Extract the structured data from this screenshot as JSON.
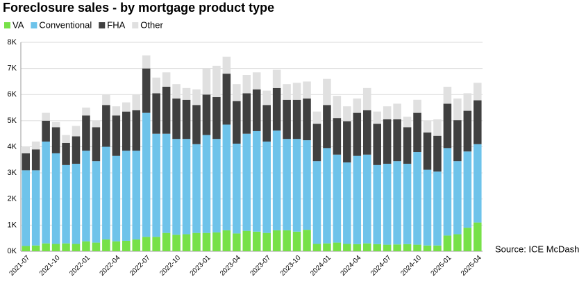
{
  "chart_data": {
    "type": "stacked_bar",
    "title": "Foreclosure sales - by mortgage product type",
    "source": "Source: ICE McDash",
    "categories": [
      "2021-07",
      null,
      null,
      "2021-10",
      null,
      null,
      "2022-01",
      null,
      null,
      "2022-04",
      null,
      null,
      "2022-07",
      null,
      null,
      "2022-10",
      null,
      null,
      "2023-01",
      null,
      null,
      "2023-04",
      null,
      null,
      "2023-07",
      null,
      null,
      "2023-10",
      null,
      null,
      "2024-01",
      null,
      null,
      "2024-04",
      null,
      null,
      "2024-07",
      null,
      null,
      "2024-10",
      null,
      null,
      "2025-01",
      null,
      null,
      "2025-04"
    ],
    "series": [
      {
        "name": "VA",
        "color": "#77e148",
        "values": [
          200,
          220,
          300,
          280,
          300,
          280,
          380,
          330,
          450,
          380,
          400,
          450,
          550,
          550,
          700,
          630,
          650,
          700,
          700,
          720,
          800,
          680,
          780,
          750,
          700,
          800,
          800,
          750,
          820,
          280,
          300,
          330,
          280,
          270,
          300,
          270,
          250,
          260,
          270,
          250,
          220,
          220,
          600,
          650,
          900,
          1100
        ]
      },
      {
        "name": "Conventional",
        "color": "#6ec3ea",
        "values": [
          2900,
          2880,
          3900,
          3470,
          3000,
          3070,
          3470,
          3120,
          3550,
          3270,
          3450,
          3400,
          4750,
          3950,
          3800,
          3670,
          3650,
          3400,
          3750,
          3580,
          4050,
          3440,
          3720,
          3850,
          3500,
          3820,
          3500,
          3550,
          3430,
          3170,
          3650,
          3370,
          3120,
          3380,
          3400,
          3030,
          3100,
          3190,
          3080,
          3550,
          2900,
          2830,
          3350,
          2800,
          2920,
          3000
        ]
      },
      {
        "name": "FHA",
        "color": "#404040",
        "values": [
          650,
          800,
          800,
          1000,
          850,
          1050,
          1350,
          1300,
          1600,
          1550,
          1500,
          1550,
          1700,
          1550,
          1800,
          1550,
          1500,
          1500,
          1550,
          1600,
          1950,
          1630,
          1550,
          1600,
          1400,
          1630,
          1500,
          1500,
          1600,
          1430,
          1650,
          1400,
          1580,
          1650,
          1700,
          1580,
          1700,
          1600,
          1400,
          1500,
          1430,
          1370,
          1700,
          1570,
          1560,
          1680
        ]
      },
      {
        "name": "Other",
        "color": "#e0e0e0",
        "values": [
          250,
          300,
          300,
          200,
          300,
          400,
          300,
          250,
          400,
          350,
          350,
          600,
          500,
          600,
          550,
          550,
          450,
          600,
          1000,
          1200,
          650,
          650,
          700,
          650,
          550,
          700,
          600,
          650,
          650,
          470,
          1000,
          850,
          570,
          550,
          850,
          470,
          500,
          600,
          400,
          500,
          450,
          630,
          650,
          830,
          670,
          670
        ]
      }
    ],
    "ylim": [
      0,
      8000
    ],
    "yticks": [
      {
        "value": 0,
        "label": "0K"
      },
      {
        "value": 1000,
        "label": "1K"
      },
      {
        "value": 2000,
        "label": "2K"
      },
      {
        "value": 3000,
        "label": "3K"
      },
      {
        "value": 4000,
        "label": "4K"
      },
      {
        "value": 5000,
        "label": "5K"
      },
      {
        "value": 6000,
        "label": "6K"
      },
      {
        "value": 7000,
        "label": "7K"
      },
      {
        "value": 8000,
        "label": "8K"
      }
    ],
    "grid": true
  }
}
